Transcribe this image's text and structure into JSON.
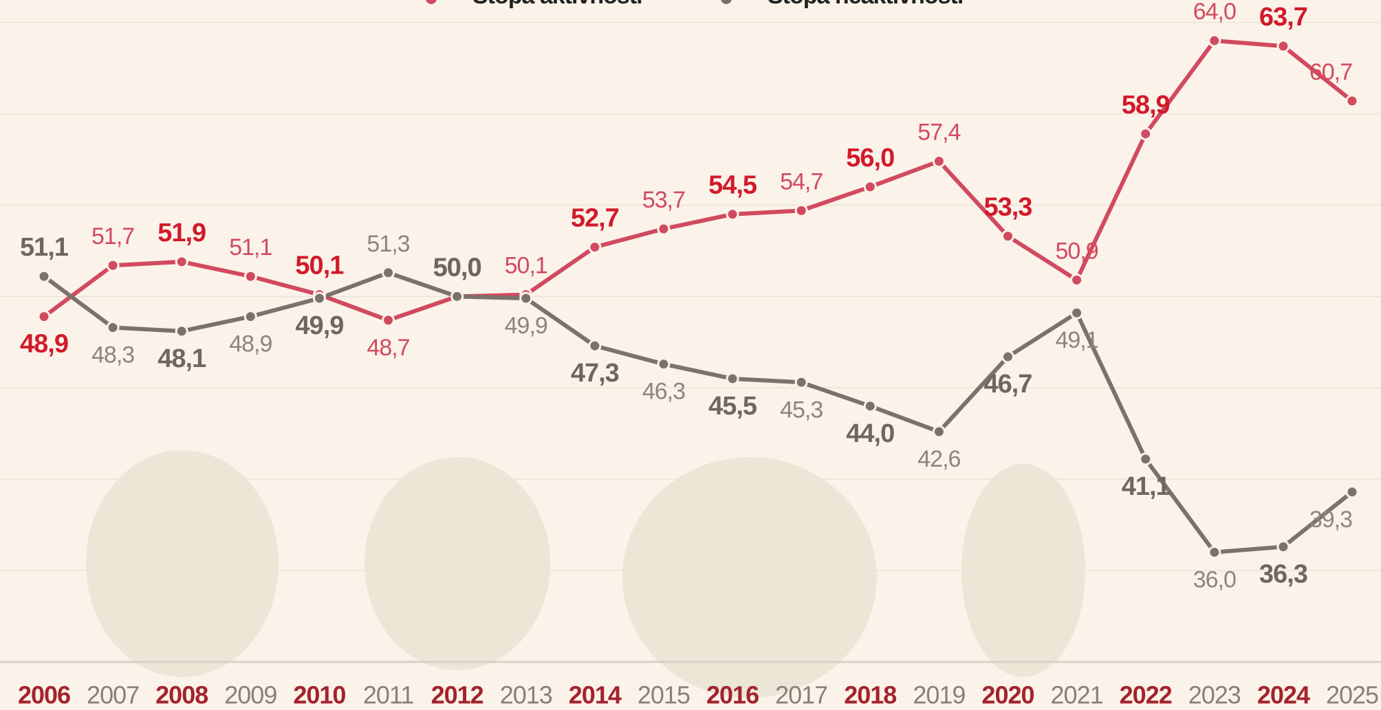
{
  "chart_data": {
    "type": "line",
    "categories": [
      "2006",
      "2007",
      "2008",
      "2009",
      "2010",
      "2011",
      "2012",
      "2013",
      "2014",
      "2015",
      "2016",
      "2017",
      "2018",
      "2019",
      "2020",
      "2021",
      "2022",
      "2023",
      "2024",
      "2025"
    ],
    "series": [
      {
        "name": "Stopa aktivnosti",
        "color": "#d14a5f",
        "values": [
          48.9,
          51.7,
          51.9,
          51.1,
          50.1,
          48.7,
          50.0,
          50.1,
          52.7,
          53.7,
          54.5,
          54.7,
          56.0,
          57.4,
          53.3,
          50.9,
          58.9,
          64.0,
          63.7,
          60.7
        ],
        "value_labels": [
          "48,9",
          "51,7",
          "51,9",
          "51,1",
          "50,1",
          "48,7",
          "50,0",
          "50,1",
          "52,7",
          "53,7",
          "54,5",
          "54,7",
          "56,0",
          "57,4",
          "53,3",
          "50,9",
          "58,9",
          "64,0",
          "63,7",
          "60,7"
        ]
      },
      {
        "name": "Stopa neaktivnosti",
        "color": "#7a736c",
        "values": [
          51.1,
          48.3,
          48.1,
          48.9,
          49.9,
          51.3,
          50.0,
          49.9,
          47.3,
          46.3,
          45.5,
          45.3,
          44.0,
          42.6,
          46.7,
          49.1,
          41.1,
          36.0,
          36.3,
          39.3
        ],
        "value_labels": [
          "51,1",
          "48,3",
          "48,1",
          "48,9",
          "49,9",
          "51,3",
          "50,0",
          "49,9",
          "47,3",
          "46,3",
          "45,5",
          "45,3",
          "44,0",
          "42,6",
          "46,7",
          "49,1",
          "41,1",
          "36,0",
          "36,3",
          "39,3"
        ]
      }
    ],
    "ylim": [
      30,
      66
    ],
    "yticks": [
      30,
      35,
      40,
      45,
      50,
      55,
      60,
      65
    ],
    "grid": true
  }
}
